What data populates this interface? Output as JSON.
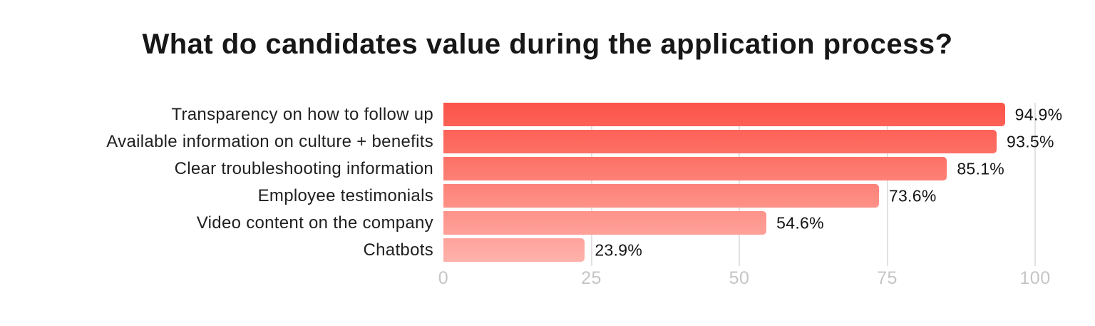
{
  "title": "What do candidates value during the application process?",
  "chart_data": {
    "type": "bar",
    "orientation": "horizontal",
    "title": "What do candidates value during the application process?",
    "categories": [
      "Transparency on how to follow up",
      "Available information on culture + benefits",
      "Clear troubleshooting information",
      "Employee testimonials",
      "Video content on the company",
      "Chatbots"
    ],
    "values": [
      94.9,
      93.5,
      85.1,
      73.6,
      54.6,
      23.9
    ],
    "value_labels": [
      "94.9%",
      "93.5%",
      "85.1%",
      "73.6%",
      "54.6%",
      "23.9%"
    ],
    "bar_colors_top": [
      "#fc544a",
      "#fd6258",
      "#fd7167",
      "#fd8278",
      "#fe9289",
      "#fea39b"
    ],
    "bar_colors_bottom": [
      "#fd6157",
      "#fd7065",
      "#fd8076",
      "#fe9188",
      "#fea199",
      "#feb2ab"
    ],
    "xlabel": "",
    "ylabel": "",
    "xlim": [
      0,
      100
    ],
    "x_ticks": [
      0,
      25,
      50,
      75,
      100
    ],
    "x_tick_labels": [
      "0",
      "25",
      "50",
      "75",
      "100"
    ],
    "grid": "vertical",
    "legend": "none"
  },
  "colors": {
    "background": "#ffffff",
    "title_text": "#171717",
    "category_text": "#1f1f1f",
    "value_text": "#141414",
    "tick_text": "#c5c5c5",
    "gridline": "#e2e2e2"
  }
}
